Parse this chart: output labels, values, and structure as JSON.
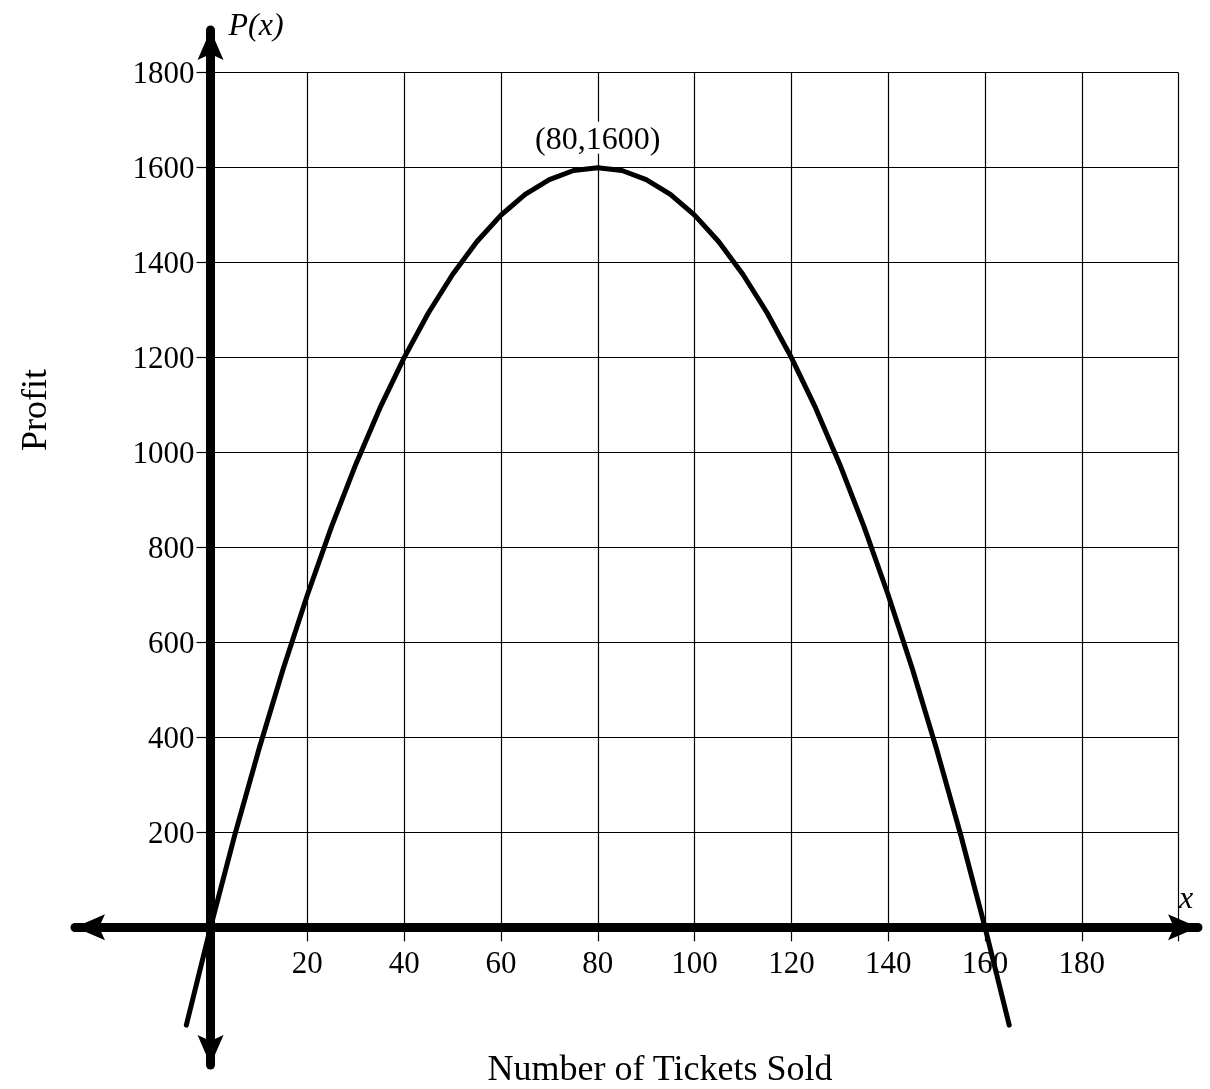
{
  "chart_data": {
    "type": "line",
    "xlabel": "Number of Tickets Sold",
    "ylabel": "Profit",
    "annotations": [
      {
        "text": "(80,1600)",
        "x": 80,
        "y": 1600
      },
      "P(x)",
      "x"
    ],
    "x": [
      -5,
      0,
      5,
      10,
      15,
      20,
      25,
      30,
      35,
      40,
      45,
      50,
      55,
      60,
      65,
      70,
      75,
      80,
      85,
      90,
      95,
      100,
      105,
      110,
      115,
      120,
      125,
      130,
      135,
      140,
      145,
      150,
      155,
      160,
      165
    ],
    "series": [
      {
        "color": "#000000",
        "values": [
          -206,
          0,
          194,
          375,
          544,
          700,
          844,
          975,
          1094,
          1200,
          1294,
          1375,
          1444,
          1500,
          1544,
          1575,
          1594,
          1600,
          1594,
          1575,
          1544,
          1500,
          1444,
          1375,
          1294,
          1200,
          1094,
          975,
          844,
          700,
          544,
          375,
          194,
          0,
          -206
        ]
      }
    ],
    "xlim": [
      -28,
      204
    ],
    "ylim": [
      -290,
      1890
    ],
    "xticks": [
      20,
      40,
      60,
      80,
      100,
      120,
      140,
      160,
      180,
      {
        "value": 200,
        "label": null
      }
    ],
    "yticks": [
      200,
      400,
      600,
      800,
      1000,
      1200,
      1400,
      1600,
      1800
    ],
    "grid": true,
    "marker": "none",
    "line_style": "solid"
  }
}
